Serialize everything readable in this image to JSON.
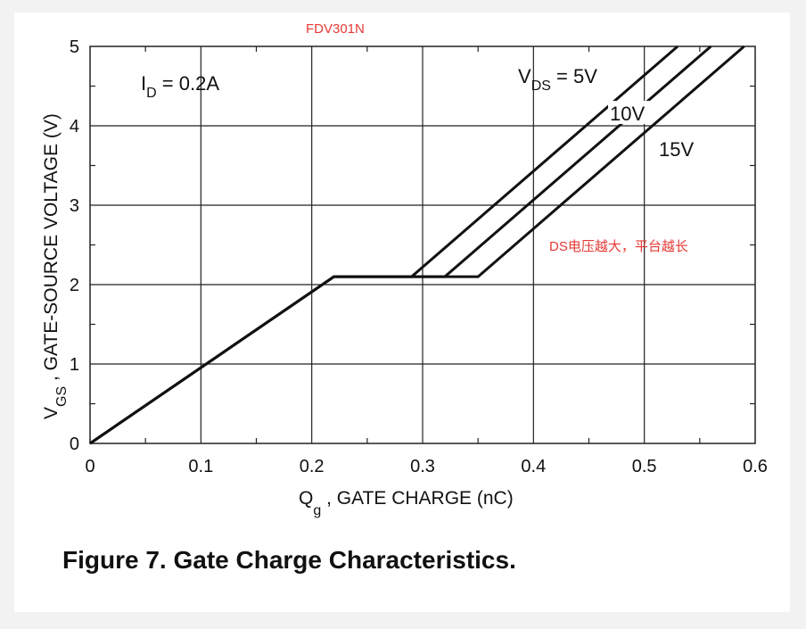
{
  "caption": "Figure 7. Gate Charge Characteristics.",
  "notes": {
    "part_number": "FDV301N",
    "remark": "DS电压越大，平台越长"
  },
  "colors": {
    "line": "#111111",
    "grid": "#222222",
    "note": "#e53935"
  },
  "chart_data": {
    "type": "line",
    "title": "",
    "xlabel": {
      "main": "Q",
      "sub": "g",
      "rest": " , GATE CHARGE (nC)"
    },
    "ylabel": {
      "main": "V",
      "sub": "GS",
      "rest": " , GATE-SOURCE VOLTAGE (V)"
    },
    "xlim": [
      0,
      0.6
    ],
    "ylim": [
      0,
      5
    ],
    "xticks": [
      "0",
      "0.1",
      "0.2",
      "0.3",
      "0.4",
      "0.5",
      "0.6"
    ],
    "yticks": [
      "0",
      "1",
      "2",
      "3",
      "4",
      "5"
    ],
    "grid": true,
    "condition": {
      "main": "I",
      "sub": "D",
      "rest": " = 0.2A"
    },
    "series": [
      {
        "name": "5V",
        "label": {
          "main": "V",
          "sub": "DS",
          "rest": " = 5V"
        },
        "x": [
          0,
          0.22,
          0.29,
          0.53
        ],
        "y": [
          0,
          2.1,
          2.1,
          5
        ]
      },
      {
        "name": "10V",
        "label": {
          "main": "10V",
          "sub": "",
          "rest": ""
        },
        "x": [
          0,
          0.22,
          0.32,
          0.56
        ],
        "y": [
          0,
          2.1,
          2.1,
          5
        ]
      },
      {
        "name": "15V",
        "label": {
          "main": "15V",
          "sub": "",
          "rest": ""
        },
        "x": [
          0,
          0.22,
          0.35,
          0.59
        ],
        "y": [
          0,
          2.1,
          2.1,
          5
        ]
      }
    ]
  }
}
